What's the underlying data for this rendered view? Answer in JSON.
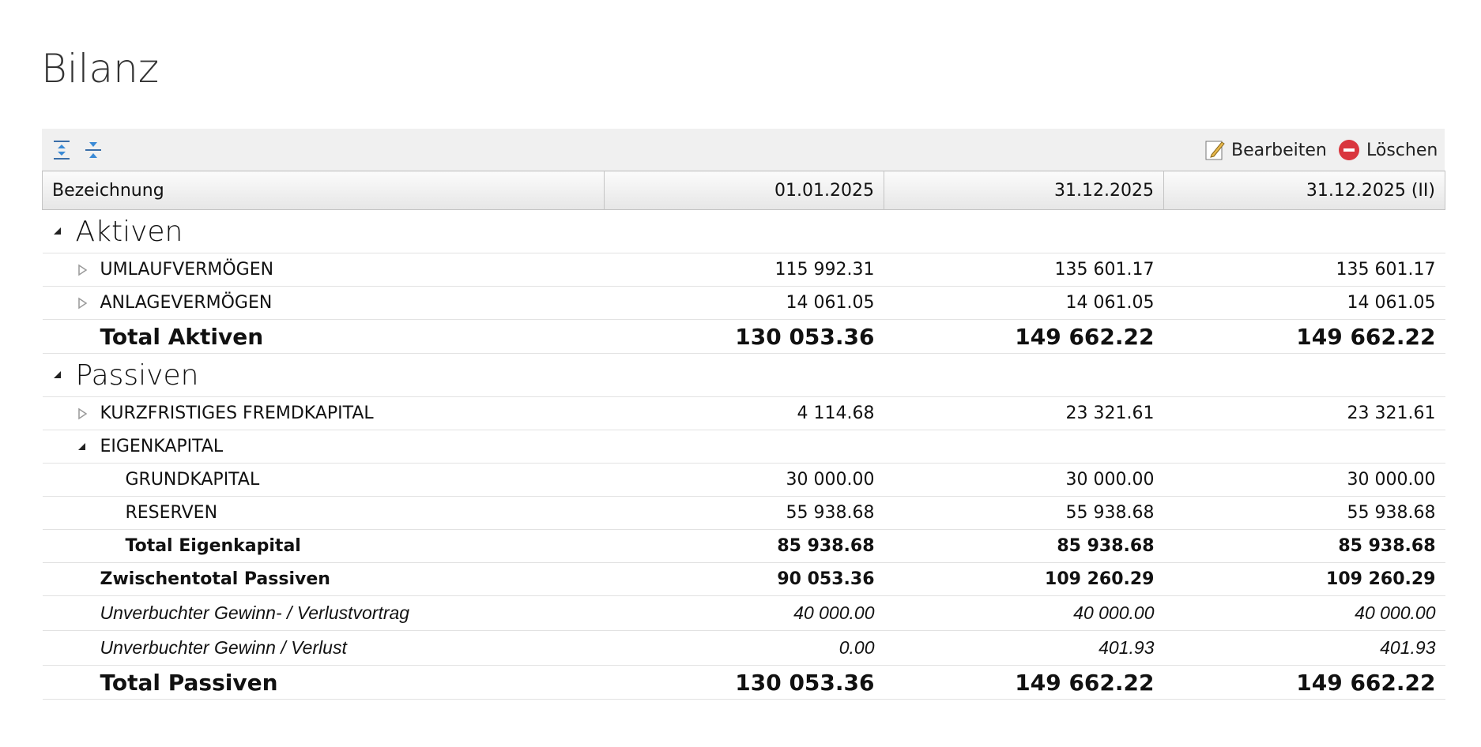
{
  "title": "Bilanz",
  "toolbar": {
    "edit": "Bearbeiten",
    "delete": "Löschen"
  },
  "table": {
    "columns": [
      "Bezeichnung",
      "01.01.2025",
      "31.12.2025",
      "31.12.2025 (II)"
    ],
    "rows": [
      {
        "label": "Aktiven"
      },
      {
        "label": "UMLAUFVERMÖGEN",
        "values": [
          "115 992.31",
          "135 601.17",
          "135 601.17"
        ]
      },
      {
        "label": "ANLAGEVERMÖGEN",
        "values": [
          "14 061.05",
          "14 061.05",
          "14 061.05"
        ]
      },
      {
        "label": "Total Aktiven",
        "values": [
          "130 053.36",
          "149 662.22",
          "149 662.22"
        ]
      },
      {
        "label": "Passiven"
      },
      {
        "label": "KURZFRISTIGES FREMDKAPITAL",
        "values": [
          "4 114.68",
          "23 321.61",
          "23 321.61"
        ]
      },
      {
        "label": "EIGENKAPITAL"
      },
      {
        "label": "GRUNDKAPITAL",
        "values": [
          "30 000.00",
          "30 000.00",
          "30 000.00"
        ]
      },
      {
        "label": "RESERVEN",
        "values": [
          "55 938.68",
          "55 938.68",
          "55 938.68"
        ]
      },
      {
        "label": "Total Eigenkapital",
        "values": [
          "85 938.68",
          "85 938.68",
          "85 938.68"
        ]
      },
      {
        "label": "Zwischentotal Passiven",
        "values": [
          "90 053.36",
          "109 260.29",
          "109 260.29"
        ]
      },
      {
        "label": "Unverbuchter Gewinn- / Verlustvortrag",
        "values": [
          "40 000.00",
          "40 000.00",
          "40 000.00"
        ]
      },
      {
        "label": "Unverbuchter Gewinn / Verlust",
        "values": [
          "0.00",
          "401.93",
          "401.93"
        ]
      },
      {
        "label": "Total Passiven",
        "values": [
          "130 053.36",
          "149 662.22",
          "149 662.22"
        ]
      }
    ]
  }
}
